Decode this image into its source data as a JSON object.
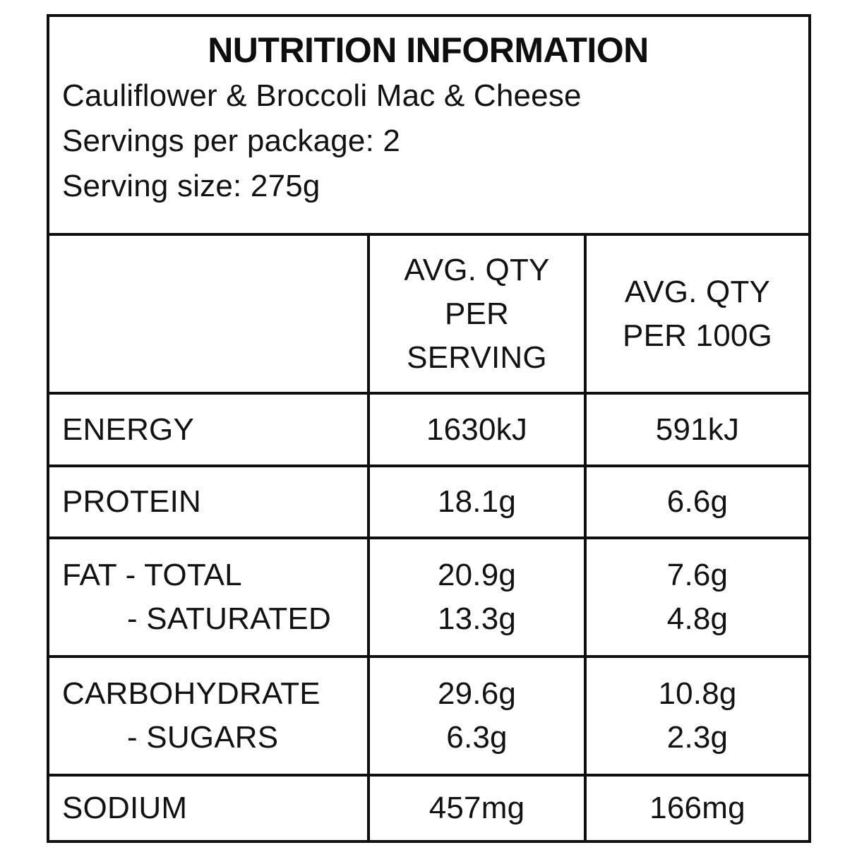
{
  "colors": {
    "ink": "#0f0f0f",
    "background": "#ffffff"
  },
  "header": {
    "title": "NUTRITION INFORMATION",
    "product": "Cauliflower & Broccoli Mac & Cheese",
    "servings_per_package": "Servings per package: 2",
    "serving_size": "Serving size: 275g"
  },
  "table": {
    "col_headers": {
      "per_serving_lines": [
        "AVG. QTY",
        "PER",
        "SERVING"
      ],
      "per_100g_lines": [
        "AVG. QTY",
        "PER 100G"
      ]
    },
    "rows": [
      {
        "label": "ENERGY",
        "per_serving": "1630kJ",
        "per_100g": "591kJ"
      },
      {
        "label": "PROTEIN",
        "per_serving": "18.1g",
        "per_100g": "6.6g"
      },
      {
        "label": "FAT - TOTAL",
        "sub_label": "- SATURATED",
        "per_serving": "20.9g",
        "per_serving_sub": "13.3g",
        "per_100g": "7.6g",
        "per_100g_sub": "4.8g"
      },
      {
        "label": "CARBOHYDRATE",
        "sub_label": "- SUGARS",
        "per_serving": "29.6g",
        "per_serving_sub": "6.3g",
        "per_100g": "10.8g",
        "per_100g_sub": "2.3g"
      },
      {
        "label": "SODIUM",
        "per_serving": "457mg",
        "per_100g": "166mg"
      }
    ]
  }
}
